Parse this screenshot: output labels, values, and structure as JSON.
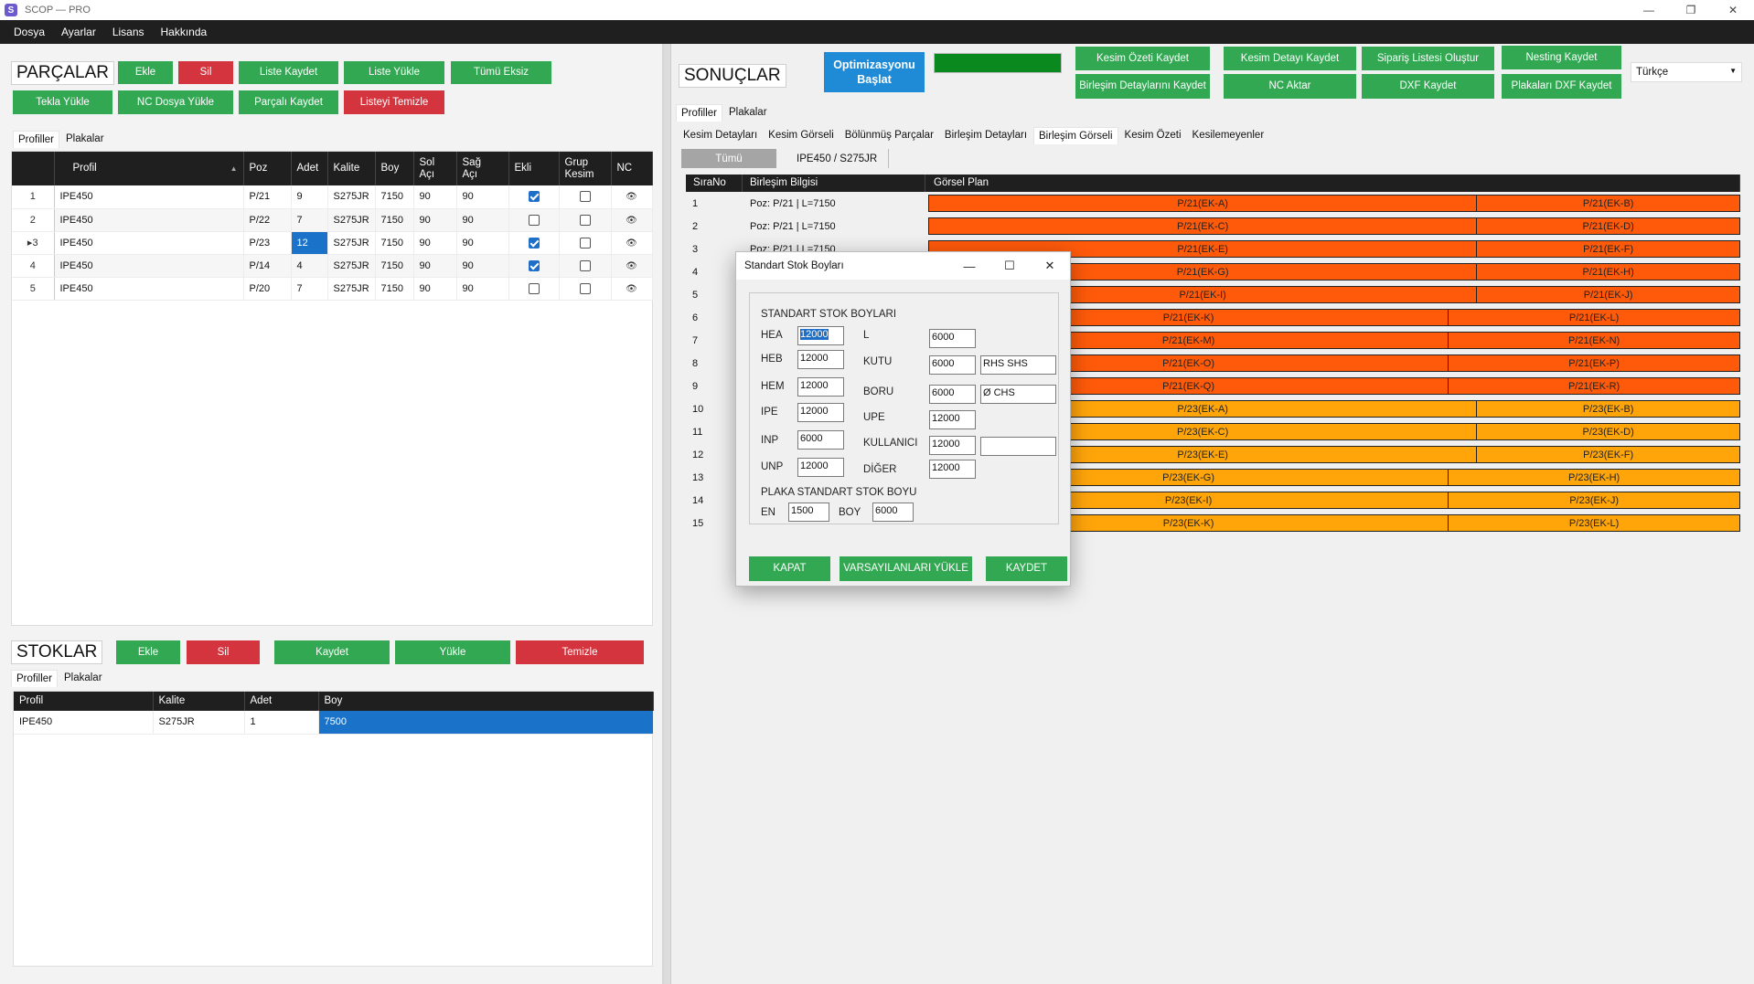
{
  "window": {
    "title": "SCOP — PRO",
    "icon_letter": "S",
    "minimize": "—",
    "restore": "❐",
    "close": "✕"
  },
  "menu": [
    "Dosya",
    "Ayarlar",
    "Lisans",
    "Hakkında"
  ],
  "parts": {
    "title": "PARÇALAR",
    "buttons": {
      "add": "Ekle",
      "delete": "Sil",
      "save_list": "Liste Kaydet",
      "load_list": "Liste Yükle",
      "all_missing": "Tümü Eksiz",
      "tekla": "Tekla Yükle",
      "nc_load": "NC Dosya Yükle",
      "save_parts": "Parçalı Kaydet",
      "clear_list": "Listeyi Temizle"
    },
    "tabs": [
      "Profiller",
      "Plakalar"
    ],
    "columns": {
      "profil": "Profil",
      "poz": "Poz",
      "adet": "Adet",
      "kalite": "Kalite",
      "boy": "Boy",
      "sol": "Sol\nAçı",
      "sag": "Sağ\nAçı",
      "ekli": "Ekli",
      "grup": "Grup\nKesim",
      "nc": "NC"
    },
    "rows": [
      {
        "no": "1",
        "profil": "IPE450",
        "poz": "P/21",
        "adet": "9",
        "kalite": "S275JR",
        "boy": "7150",
        "sol": "90",
        "sag": "90",
        "ekli": true,
        "grup": false,
        "current": false
      },
      {
        "no": "2",
        "profil": "IPE450",
        "poz": "P/22",
        "adet": "7",
        "kalite": "S275JR",
        "boy": "7150",
        "sol": "90",
        "sag": "90",
        "ekli": false,
        "grup": false,
        "current": false
      },
      {
        "no": "3",
        "profil": "IPE450",
        "poz": "P/23",
        "adet": "12",
        "kalite": "S275JR",
        "boy": "7150",
        "sol": "90",
        "sag": "90",
        "ekli": true,
        "grup": false,
        "current": true
      },
      {
        "no": "4",
        "profil": "IPE450",
        "poz": "P/14",
        "adet": "4",
        "kalite": "S275JR",
        "boy": "7150",
        "sol": "90",
        "sag": "90",
        "ekli": true,
        "grup": false,
        "current": false
      },
      {
        "no": "5",
        "profil": "IPE450",
        "poz": "P/20",
        "adet": "7",
        "kalite": "S275JR",
        "boy": "7150",
        "sol": "90",
        "sag": "90",
        "ekli": false,
        "grup": false,
        "current": false
      }
    ]
  },
  "stocks": {
    "title": "STOKLAR",
    "buttons": {
      "add": "Ekle",
      "delete": "Sil",
      "save": "Kaydet",
      "load": "Yükle",
      "clear": "Temizle"
    },
    "tabs": [
      "Profiller",
      "Plakalar"
    ],
    "columns": [
      "Profil",
      "Kalite",
      "Adet",
      "Boy"
    ],
    "rows": [
      {
        "profil": "IPE450",
        "kalite": "S275JR",
        "adet": "1",
        "boy": "7500"
      }
    ]
  },
  "results": {
    "title": "SONUÇLAR",
    "optimize_button": "Optimizasyonu Başlat",
    "progress": 1.0,
    "buttons": {
      "cut_summary": "Kesim Özeti Kaydet",
      "cut_detail": "Kesim Detayı Kaydet",
      "order_list": "Sipariş Listesi Oluştur",
      "nesting": "Nesting Kaydet",
      "joint_details": "Birleşim Detaylarını Kaydet",
      "nc_export": "NC Aktar",
      "dxf": "DXF Kaydet",
      "plates_dxf": "Plakaları DXF Kaydet"
    },
    "language": "Türkçe",
    "tabs": [
      "Profiller",
      "Plakalar"
    ],
    "subtabs": [
      "Kesim Detayları",
      "Kesim Görseli",
      "Bölünmüş Parçalar",
      "Birleşim Detayları",
      "Birleşim Görseli",
      "Kesim Özeti",
      "Kesilemeyenler"
    ],
    "filter_all": "Tümü",
    "filter_profile": "IPE450 / S275JR",
    "columns": {
      "no": "SıraNo",
      "info": "Birleşim Bilgisi",
      "plan": "Görsel Plan"
    },
    "rows": [
      {
        "no": "1",
        "info": "Poz: P/21 | L=7150",
        "a": "P/21(EK-A)",
        "b": "P/21(EK-B)",
        "split": 0.676,
        "color": "#ff5a0a"
      },
      {
        "no": "2",
        "info": "Poz: P/21 | L=7150",
        "a": "P/21(EK-C)",
        "b": "P/21(EK-D)",
        "split": 0.676,
        "color": "#ff5a0a"
      },
      {
        "no": "3",
        "info": "Poz: P/21 | L=7150",
        "a": "P/21(EK-E)",
        "b": "P/21(EK-F)",
        "split": 0.676,
        "color": "#ff5a0a"
      },
      {
        "no": "4",
        "info": "",
        "a": "P/21(EK-G)",
        "b": "P/21(EK-H)",
        "split": 0.676,
        "color": "#ff5a0a"
      },
      {
        "no": "5",
        "info": "",
        "a": "P/21(EK-I)",
        "b": "P/21(EK-J)",
        "split": 0.676,
        "color": "#ff5a0a"
      },
      {
        "no": "6",
        "info": "",
        "a": "P/21(EK-K)",
        "b": "P/21(EK-L)",
        "split": 0.641,
        "color": "#ff5a0a"
      },
      {
        "no": "7",
        "info": "",
        "a": "P/21(EK-M)",
        "b": "P/21(EK-N)",
        "split": 0.641,
        "color": "#ff5a0a"
      },
      {
        "no": "8",
        "info": "",
        "a": "P/21(EK-O)",
        "b": "P/21(EK-P)",
        "split": 0.641,
        "color": "#ff5a0a"
      },
      {
        "no": "9",
        "info": "",
        "a": "P/21(EK-Q)",
        "b": "P/21(EK-R)",
        "split": 0.641,
        "color": "#ff5a0a"
      },
      {
        "no": "10",
        "info": "",
        "a": "P/23(EK-A)",
        "b": "P/23(EK-B)",
        "split": 0.676,
        "color": "#ffa50a"
      },
      {
        "no": "11",
        "info": "",
        "a": "P/23(EK-C)",
        "b": "P/23(EK-D)",
        "split": 0.676,
        "color": "#ffa50a"
      },
      {
        "no": "12",
        "info": "",
        "a": "P/23(EK-E)",
        "b": "P/23(EK-F)",
        "split": 0.676,
        "color": "#ffa50a"
      },
      {
        "no": "13",
        "info": "",
        "a": "P/23(EK-G)",
        "b": "P/23(EK-H)",
        "split": 0.641,
        "color": "#ffa50a"
      },
      {
        "no": "14",
        "info": "",
        "a": "P/23(EK-I)",
        "b": "P/23(EK-J)",
        "split": 0.641,
        "color": "#ffa50a"
      },
      {
        "no": "15",
        "info": "",
        "a": "P/23(EK-K)",
        "b": "P/23(EK-L)",
        "split": 0.641,
        "color": "#ffa50a"
      }
    ]
  },
  "dialog": {
    "title": "Standart Stok Boyları",
    "header": "STANDART STOK BOYLARI",
    "labels": {
      "hea": "HEA",
      "heb": "HEB",
      "hem": "HEM",
      "ipe": "IPE",
      "inp": "INP",
      "unp": "UNP",
      "l": "L",
      "kutu": "KUTU",
      "boru": "BORU",
      "upe": "UPE",
      "kullanici": "KULLANICI",
      "diger": "DİĞER",
      "plate_header": "PLAKA STANDART STOK BOYU",
      "en": "EN",
      "boy": "BOY"
    },
    "values": {
      "hea": "12000",
      "heb": "12000",
      "hem": "12000",
      "ipe": "12000",
      "inp": "6000",
      "unp": "12000",
      "l": "6000",
      "kutu": "6000",
      "kutu_name": "RHS SHS",
      "boru": "6000",
      "boru_name": "Ø CHS",
      "upe": "12000",
      "kullanici": "12000",
      "kullanici_name": "",
      "diger": "12000",
      "en": "1500",
      "boy": "6000"
    },
    "buttons": {
      "close": "KAPAT",
      "defaults": "VARSAYILANLARI YÜKLE",
      "save": "KAYDET"
    }
  }
}
